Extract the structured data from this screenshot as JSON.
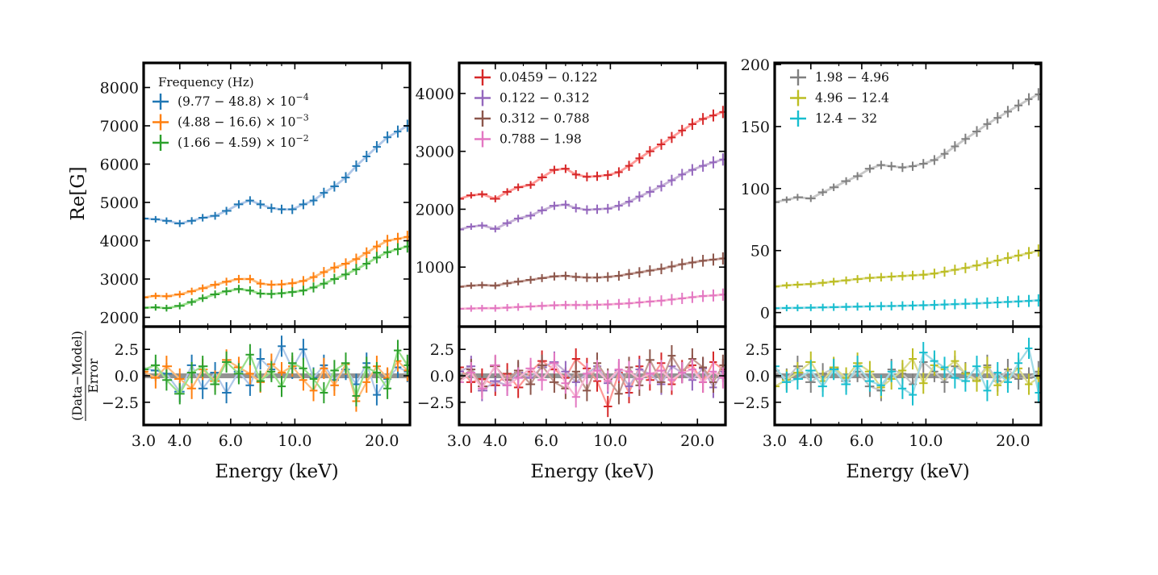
{
  "chart_data": {
    "type": "line",
    "shared": {
      "xlabel": "Energy (keV)",
      "x_scale": "log",
      "xlim": [
        3.0,
        25.0
      ],
      "x_ticks": [
        3.0,
        4.0,
        6.0,
        10.0,
        20.0
      ],
      "x_tick_labels": [
        "3.0",
        "4.0",
        "6.0",
        "10.0",
        "20.0"
      ],
      "ylabel_top": "Re[G]",
      "ylabel_bottom_numerator": "(Data−Model)",
      "ylabel_bottom_denominator": "Error",
      "resid_ylim": [
        -4.5,
        4.5
      ],
      "resid_ticks": [
        2.5,
        0.0,
        -2.5
      ],
      "resid_tick_labels": [
        "2.5",
        "0.0",
        "−2.5"
      ],
      "model_line": "solid, lighter shade of each series colour",
      "data_marker": "error-bar crosses"
    },
    "panels": [
      {
        "id": "left",
        "ylim": [
          1800,
          8600
        ],
        "y_ticks": [
          2000,
          3000,
          4000,
          5000,
          6000,
          7000,
          8000
        ],
        "y_tick_labels": [
          "2000",
          "3000",
          "4000",
          "5000",
          "6000",
          "7000",
          "8000"
        ],
        "legend_title": "Frequency (Hz)",
        "legend_position": "top-left",
        "series": [
          {
            "name": "(9.77 − 48.8) × 10",
            "exp": "−4",
            "color": "#1f77b4",
            "model_color": "#aec7e8",
            "x": [
              3.0,
              3.3,
              3.6,
              4.0,
              4.4,
              4.8,
              5.3,
              5.8,
              6.4,
              7.0,
              7.6,
              8.3,
              9.0,
              9.8,
              10.7,
              11.6,
              12.6,
              13.7,
              15.0,
              16.3,
              17.7,
              19.2,
              20.9,
              22.7,
              24.5
            ],
            "y": [
              4580,
              4560,
              4520,
              4450,
              4520,
              4600,
              4650,
              4780,
              4950,
              5050,
              4950,
              4850,
              4820,
              4820,
              4950,
              5050,
              5250,
              5420,
              5650,
              5950,
              6200,
              6450,
              6700,
              6850,
              7000
            ],
            "resid": [
              0.7,
              0.5,
              0.2,
              -1.5,
              1.0,
              -1.2,
              0.3,
              -1.6,
              0.4,
              -0.9,
              1.6,
              0.6,
              2.8,
              0.7,
              2.5,
              -0.2,
              1.0,
              -0.4,
              0.6,
              -0.8,
              1.2,
              -1.8,
              -0.3,
              0.8,
              0.4
            ]
          },
          {
            "name": "(4.88 − 16.6) × 10",
            "exp": "−3",
            "color": "#ff7f0e",
            "model_color": "#ffbb78",
            "x": [
              3.0,
              3.3,
              3.6,
              4.0,
              4.4,
              4.8,
              5.3,
              5.8,
              6.4,
              7.0,
              7.6,
              8.3,
              9.0,
              9.8,
              10.7,
              11.6,
              12.6,
              13.7,
              15.0,
              16.3,
              17.7,
              19.2,
              20.9,
              22.7,
              24.5
            ],
            "y": [
              2520,
              2560,
              2550,
              2600,
              2680,
              2760,
              2850,
              2930,
              3000,
              3000,
              2880,
              2850,
              2860,
              2890,
              2950,
              3050,
              3180,
              3300,
              3400,
              3520,
              3680,
              3850,
              4000,
              4050,
              4100
            ],
            "resid": [
              0.4,
              -0.2,
              0.9,
              -0.3,
              -1.2,
              0.6,
              -0.5,
              1.5,
              0.8,
              0.2,
              -0.6,
              1.1,
              0.3,
              0.9,
              -0.4,
              -1.4,
              0.7,
              -0.9,
              1.1,
              -2.4,
              -0.6,
              0.9,
              -0.2,
              1.4,
              0.5
            ]
          },
          {
            "name": "(1.66 − 4.59) × 10",
            "exp": "−2",
            "color": "#2ca02c",
            "model_color": "#98df8a",
            "x": [
              3.0,
              3.3,
              3.6,
              4.0,
              4.4,
              4.8,
              5.3,
              5.8,
              6.4,
              7.0,
              7.6,
              8.3,
              9.0,
              9.8,
              10.7,
              11.6,
              12.6,
              13.7,
              15.0,
              16.3,
              17.7,
              19.2,
              20.9,
              22.7,
              24.5
            ],
            "y": [
              2250,
              2260,
              2240,
              2300,
              2400,
              2500,
              2600,
              2680,
              2740,
              2700,
              2620,
              2610,
              2630,
              2660,
              2700,
              2780,
              2880,
              3000,
              3120,
              3250,
              3400,
              3560,
              3700,
              3780,
              3850
            ],
            "resid": [
              0.6,
              1.0,
              -0.4,
              -1.7,
              0.3,
              0.9,
              -0.8,
              1.3,
              0.2,
              2.0,
              -0.5,
              0.4,
              -1.0,
              1.2,
              0.7,
              -0.3,
              -1.6,
              0.5,
              1.2,
              -1.9,
              0.8,
              0.3,
              -1.2,
              2.4,
              1.0
            ]
          }
        ]
      },
      {
        "id": "middle",
        "ylim": [
          0,
          4500
        ],
        "y_ticks": [
          1000,
          2000,
          3000,
          4000
        ],
        "y_tick_labels": [
          "1000",
          "2000",
          "3000",
          "4000"
        ],
        "legend_position": "top-left",
        "series": [
          {
            "name": "0.0459 − 0.122",
            "color": "#d62728",
            "model_color": "#ff9896",
            "x": [
              3.0,
              3.3,
              3.6,
              4.0,
              4.4,
              4.8,
              5.3,
              5.8,
              6.4,
              7.0,
              7.6,
              8.3,
              9.0,
              9.8,
              10.7,
              11.6,
              12.6,
              13.7,
              15.0,
              16.3,
              17.7,
              19.2,
              20.9,
              22.7,
              24.5
            ],
            "y": [
              2180,
              2240,
              2260,
              2180,
              2300,
              2380,
              2420,
              2550,
              2680,
              2700,
              2600,
              2560,
              2570,
              2590,
              2640,
              2750,
              2880,
              3000,
              3120,
              3240,
              3360,
              3470,
              3560,
              3620,
              3680
            ],
            "resid": [
              0.8,
              -0.6,
              -0.3,
              -0.9,
              0.2,
              -1.1,
              0.4,
              1.4,
              0.6,
              -0.2,
              1.6,
              0.7,
              -0.5,
              -2.9,
              0.3,
              -1.6,
              0.9,
              -0.4,
              1.2,
              -0.8,
              0.5,
              1.0,
              -0.6,
              1.3,
              0.6
            ]
          },
          {
            "name": "0.122 − 0.312",
            "color": "#9467bd",
            "model_color": "#c5b0d5",
            "x": [
              3.0,
              3.3,
              3.6,
              4.0,
              4.4,
              4.8,
              5.3,
              5.8,
              6.4,
              7.0,
              7.6,
              8.3,
              9.0,
              9.8,
              10.7,
              11.6,
              12.6,
              13.7,
              15.0,
              16.3,
              17.7,
              19.2,
              20.9,
              22.7,
              24.5
            ],
            "y": [
              1650,
              1700,
              1720,
              1660,
              1760,
              1840,
              1890,
              1980,
              2060,
              2080,
              2020,
              1990,
              2000,
              2010,
              2060,
              2130,
              2220,
              2300,
              2400,
              2500,
              2600,
              2680,
              2750,
              2810,
              2860
            ],
            "resid": [
              0.4,
              0.9,
              -1.4,
              -0.5,
              -0.9,
              0.3,
              -0.2,
              0.8,
              1.3,
              0.4,
              -0.6,
              0.2,
              0.9,
              -0.7,
              0.5,
              -1.0,
              0.6,
              0.2,
              -0.8,
              0.9,
              0.3,
              -0.4,
              0.7,
              -1.1,
              0.4
            ]
          },
          {
            "name": "0.312 − 0.788",
            "color": "#8c564b",
            "model_color": "#c49c94",
            "x": [
              3.0,
              3.3,
              3.6,
              4.0,
              4.4,
              4.8,
              5.3,
              5.8,
              6.4,
              7.0,
              7.6,
              8.3,
              9.0,
              9.8,
              10.7,
              11.6,
              12.6,
              13.7,
              15.0,
              16.3,
              17.7,
              19.2,
              20.9,
              22.7,
              24.5
            ],
            "y": [
              660,
              680,
              690,
              680,
              720,
              750,
              780,
              810,
              840,
              850,
              830,
              820,
              820,
              830,
              850,
              880,
              910,
              940,
              970,
              1010,
              1050,
              1080,
              1110,
              1130,
              1150
            ],
            "resid": [
              -0.3,
              0.6,
              -1.0,
              0.9,
              -0.4,
              0.5,
              -0.8,
              1.0,
              -0.6,
              -1.2,
              0.4,
              -1.4,
              1.2,
              -0.3,
              -1.7,
              0.8,
              -0.9,
              1.5,
              -0.6,
              1.9,
              0.3,
              1.6,
              0.8,
              -0.6,
              1.0
            ]
          },
          {
            "name": "0.788 − 1.98",
            "color": "#e377c2",
            "model_color": "#f7b6d2",
            "x": [
              3.0,
              3.3,
              3.6,
              4.0,
              4.4,
              4.8,
              5.3,
              5.8,
              6.4,
              7.0,
              7.6,
              8.3,
              9.0,
              9.8,
              10.7,
              11.6,
              12.6,
              13.7,
              15.0,
              16.3,
              17.7,
              19.2,
              20.9,
              22.7,
              24.5
            ],
            "y": [
              280,
              285,
              290,
              290,
              300,
              310,
              320,
              330,
              340,
              345,
              345,
              345,
              350,
              355,
              365,
              375,
              390,
              405,
              420,
              440,
              460,
              480,
              500,
              510,
              525
            ],
            "resid": [
              -0.6,
              0.3,
              -1.2,
              1.0,
              -0.9,
              -0.2,
              0.7,
              -0.4,
              1.2,
              -0.7,
              -2.0,
              0.2,
              0.5,
              -0.5,
              0.6,
              0.4,
              -0.3,
              0.2,
              0.5,
              -0.4,
              0.3,
              0.6,
              -0.6,
              0.4,
              -0.2
            ]
          }
        ]
      },
      {
        "id": "right",
        "ylim": [
          -10,
          200
        ],
        "y_ticks": [
          0,
          50,
          100,
          150,
          200
        ],
        "y_tick_labels": [
          "0",
          "50",
          "100",
          "150",
          "200"
        ],
        "legend_position": "top-left",
        "series": [
          {
            "name": "1.98 − 4.96",
            "color": "#7f7f7f",
            "model_color": "#c7c7c7",
            "x": [
              3.0,
              3.3,
              3.6,
              4.0,
              4.4,
              4.8,
              5.3,
              5.8,
              6.4,
              7.0,
              7.6,
              8.3,
              9.0,
              9.8,
              10.7,
              11.6,
              12.6,
              13.7,
              15.0,
              16.3,
              17.7,
              19.2,
              20.9,
              22.7,
              24.5
            ],
            "y": [
              89,
              91,
              93,
              92,
              97,
              101,
              106,
              110,
              116,
              119,
              118,
              117,
              118,
              120,
              123,
              128,
              134,
              140,
              146,
              152,
              157,
              162,
              167,
              172,
              176
            ],
            "resid": [
              0.5,
              -0.3,
              0.9,
              -0.6,
              0.2,
              0.7,
              -0.5,
              0.4,
              -1.0,
              -1.4,
              0.6,
              0.2,
              -0.8,
              1.3,
              0.4,
              -0.6,
              0.9,
              0.3,
              -0.4,
              1.0,
              -0.5,
              0.6,
              -0.3,
              -0.2,
              0.4
            ]
          },
          {
            "name": "4.96 − 12.4",
            "color": "#bcbd22",
            "model_color": "#dbdb8d",
            "x": [
              3.0,
              3.3,
              3.6,
              4.0,
              4.4,
              4.8,
              5.3,
              5.8,
              6.4,
              7.0,
              7.6,
              8.3,
              9.0,
              9.8,
              10.7,
              11.6,
              12.6,
              13.7,
              15.0,
              16.3,
              17.7,
              19.2,
              20.9,
              22.7,
              24.5
            ],
            "y": [
              21,
              22,
              22.5,
              23,
              24,
              25,
              26,
              27,
              28,
              28.5,
              29,
              29.5,
              30,
              30.5,
              31.5,
              33,
              34.5,
              36,
              38,
              40,
              42,
              44,
              46,
              48,
              50
            ],
            "resid": [
              -1.0,
              -0.4,
              0.3,
              1.3,
              -0.5,
              0.8,
              -0.2,
              1.2,
              0.4,
              -1.1,
              -0.3,
              0.5,
              1.6,
              -0.7,
              1.0,
              0.6,
              1.4,
              0.2,
              -0.5,
              0.8,
              -0.9,
              -0.2,
              0.7,
              -0.8,
              -0.2
            ]
          },
          {
            "name": "12.4 − 32",
            "color": "#17becf",
            "model_color": "#9edae5",
            "x": [
              3.0,
              3.3,
              3.6,
              4.0,
              4.4,
              4.8,
              5.3,
              5.8,
              6.4,
              7.0,
              7.6,
              8.3,
              9.0,
              9.8,
              10.7,
              11.6,
              12.6,
              13.7,
              15.0,
              16.3,
              17.7,
              19.2,
              20.9,
              22.7,
              24.5
            ],
            "y": [
              3.5,
              3.7,
              3.8,
              4.0,
              4.2,
              4.4,
              4.6,
              4.8,
              5.0,
              5.2,
              5.3,
              5.5,
              5.7,
              5.9,
              6.2,
              6.5,
              6.8,
              7.1,
              7.4,
              7.8,
              8.2,
              8.6,
              9.0,
              9.4,
              9.8
            ],
            "resid": [
              0.9,
              -0.6,
              -0.3,
              0.5,
              -1.0,
              0.6,
              -0.8,
              0.9,
              -0.5,
              -0.9,
              0.4,
              -1.2,
              -1.8,
              2.2,
              1.4,
              0.8,
              -0.2,
              -0.5,
              0.9,
              -1.4,
              0.3,
              -0.6,
              1.2,
              2.6,
              -1.6
            ]
          }
        ]
      }
    ]
  }
}
